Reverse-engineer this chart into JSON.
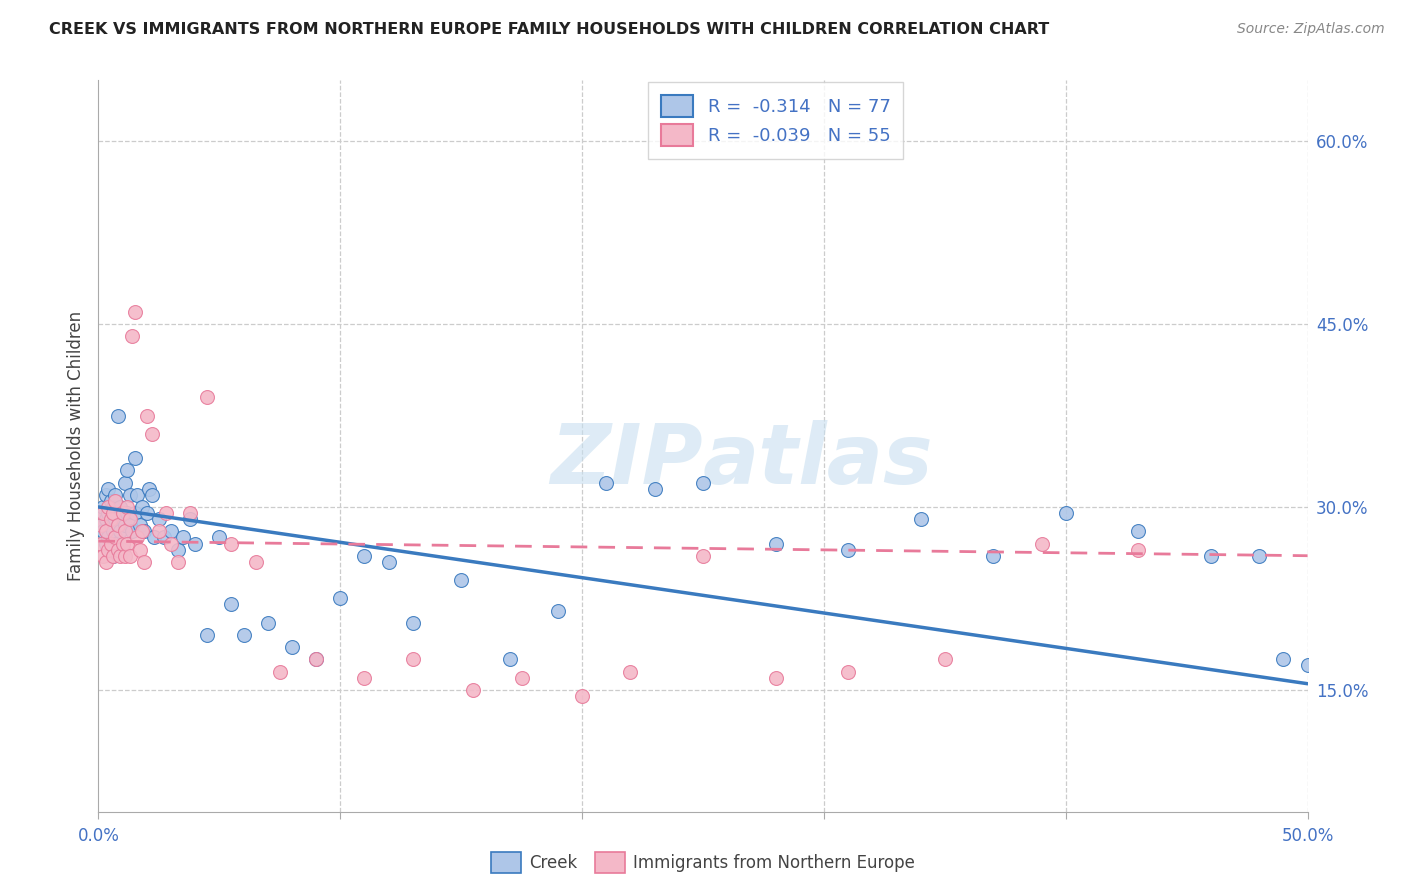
{
  "title": "CREEK VS IMMIGRANTS FROM NORTHERN EUROPE FAMILY HOUSEHOLDS WITH CHILDREN CORRELATION CHART",
  "source": "Source: ZipAtlas.com",
  "ylabel": "Family Households with Children",
  "xlim": [
    0.0,
    0.5
  ],
  "ylim": [
    0.05,
    0.65
  ],
  "yticks_right": [
    0.15,
    0.3,
    0.45,
    0.6
  ],
  "ytick_right_labels": [
    "15.0%",
    "30.0%",
    "45.0%",
    "60.0%"
  ],
  "creek_color": "#aec6e8",
  "immigrant_color": "#f4b8c8",
  "creek_line_color": "#3a7abf",
  "immigrant_line_color": "#e87a9a",
  "creek_R": -0.314,
  "creek_N": 77,
  "immigrant_R": -0.039,
  "immigrant_N": 55,
  "creek_scatter_x": [
    0.001,
    0.001,
    0.002,
    0.002,
    0.003,
    0.003,
    0.003,
    0.004,
    0.004,
    0.004,
    0.005,
    0.005,
    0.005,
    0.006,
    0.006,
    0.006,
    0.007,
    0.007,
    0.007,
    0.008,
    0.008,
    0.008,
    0.009,
    0.009,
    0.01,
    0.01,
    0.011,
    0.011,
    0.012,
    0.012,
    0.013,
    0.013,
    0.014,
    0.015,
    0.015,
    0.016,
    0.017,
    0.018,
    0.019,
    0.02,
    0.021,
    0.022,
    0.023,
    0.025,
    0.027,
    0.03,
    0.033,
    0.035,
    0.038,
    0.04,
    0.045,
    0.05,
    0.055,
    0.06,
    0.07,
    0.08,
    0.09,
    0.1,
    0.11,
    0.12,
    0.13,
    0.15,
    0.17,
    0.19,
    0.21,
    0.23,
    0.25,
    0.28,
    0.31,
    0.34,
    0.37,
    0.4,
    0.43,
    0.46,
    0.48,
    0.49,
    0.5
  ],
  "creek_scatter_y": [
    0.285,
    0.295,
    0.28,
    0.3,
    0.27,
    0.29,
    0.31,
    0.275,
    0.295,
    0.315,
    0.265,
    0.285,
    0.305,
    0.26,
    0.28,
    0.3,
    0.27,
    0.29,
    0.31,
    0.265,
    0.285,
    0.375,
    0.28,
    0.3,
    0.265,
    0.29,
    0.32,
    0.285,
    0.33,
    0.295,
    0.285,
    0.31,
    0.28,
    0.295,
    0.34,
    0.31,
    0.285,
    0.3,
    0.28,
    0.295,
    0.315,
    0.31,
    0.275,
    0.29,
    0.275,
    0.28,
    0.265,
    0.275,
    0.29,
    0.27,
    0.195,
    0.275,
    0.22,
    0.195,
    0.205,
    0.185,
    0.175,
    0.225,
    0.26,
    0.255,
    0.205,
    0.24,
    0.175,
    0.215,
    0.32,
    0.315,
    0.32,
    0.27,
    0.265,
    0.29,
    0.26,
    0.295,
    0.28,
    0.26,
    0.26,
    0.175,
    0.17
  ],
  "immigrant_scatter_x": [
    0.001,
    0.001,
    0.002,
    0.002,
    0.003,
    0.003,
    0.004,
    0.004,
    0.005,
    0.005,
    0.006,
    0.006,
    0.007,
    0.007,
    0.008,
    0.008,
    0.009,
    0.01,
    0.01,
    0.011,
    0.011,
    0.012,
    0.012,
    0.013,
    0.013,
    0.014,
    0.015,
    0.016,
    0.017,
    0.018,
    0.019,
    0.02,
    0.022,
    0.025,
    0.028,
    0.03,
    0.033,
    0.038,
    0.045,
    0.055,
    0.065,
    0.075,
    0.09,
    0.11,
    0.13,
    0.155,
    0.175,
    0.2,
    0.22,
    0.25,
    0.28,
    0.31,
    0.35,
    0.39,
    0.43
  ],
  "immigrant_scatter_y": [
    0.27,
    0.285,
    0.26,
    0.295,
    0.255,
    0.28,
    0.265,
    0.3,
    0.27,
    0.29,
    0.26,
    0.295,
    0.275,
    0.305,
    0.265,
    0.285,
    0.26,
    0.27,
    0.295,
    0.26,
    0.28,
    0.27,
    0.3,
    0.26,
    0.29,
    0.44,
    0.46,
    0.275,
    0.265,
    0.28,
    0.255,
    0.375,
    0.36,
    0.28,
    0.295,
    0.27,
    0.255,
    0.295,
    0.39,
    0.27,
    0.255,
    0.165,
    0.175,
    0.16,
    0.175,
    0.15,
    0.16,
    0.145,
    0.165,
    0.26,
    0.16,
    0.165,
    0.175,
    0.27,
    0.265
  ],
  "creek_line_x0": 0.0,
  "creek_line_y0": 0.3,
  "creek_line_x1": 0.5,
  "creek_line_y1": 0.155,
  "immigrant_line_x0": 0.0,
  "immigrant_line_y0": 0.272,
  "immigrant_line_x1": 0.5,
  "immigrant_line_y1": 0.26
}
